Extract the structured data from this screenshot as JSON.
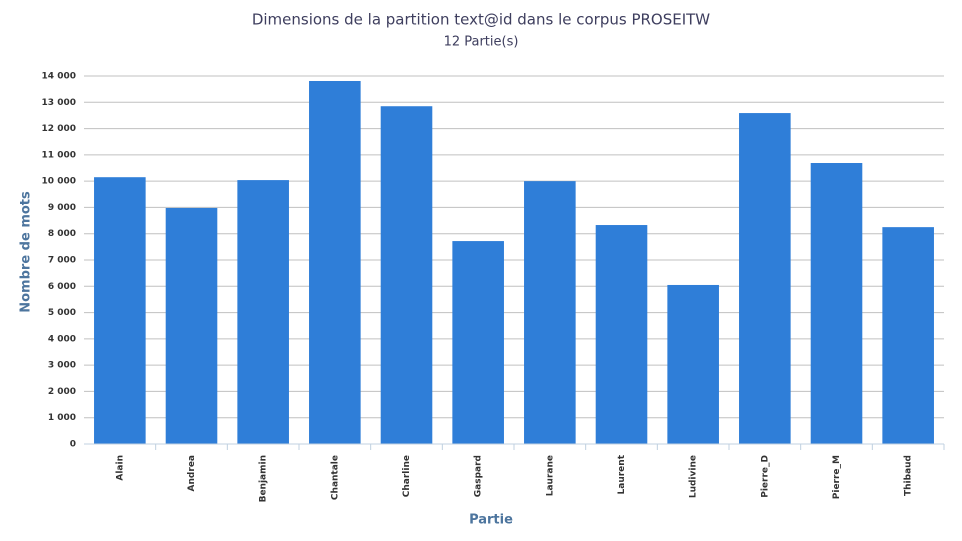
{
  "chart_data": {
    "type": "bar",
    "title": "Dimensions de la partition text@id dans le corpus PROSEITW",
    "subtitle": "12 Partie(s)",
    "x_label": "Partie",
    "y_label": "Nombre de mots",
    "categories": [
      "Alain",
      "Andrea",
      "Benjamin",
      "Chantale",
      "Charline",
      "Gaspard",
      "Laurane",
      "Laurent",
      "Ludivine",
      "Pierre_D",
      "Pierre_M",
      "Thibaud"
    ],
    "values": [
      10150,
      8980,
      10040,
      13810,
      12850,
      7720,
      10000,
      8330,
      6050,
      12590,
      10690,
      8250
    ],
    "color": "#2f7ed8",
    "ylim": [
      0,
      14000
    ],
    "yticks": [
      0,
      {
        "value": 1000,
        "label": "1 000"
      },
      {
        "value": 2000,
        "label": "2 000"
      },
      {
        "value": 3000,
        "label": "3 000"
      },
      {
        "value": 4000,
        "label": "4 000"
      },
      {
        "value": 5000,
        "label": "5 000"
      },
      {
        "value": 6000,
        "label": "6 000"
      },
      {
        "value": 7000,
        "label": "7 000"
      },
      {
        "value": 8000,
        "label": "8 000"
      },
      {
        "value": 9000,
        "label": "9 000"
      },
      {
        "value": 10000,
        "label": "10 000"
      },
      {
        "value": 11000,
        "label": "11 000"
      },
      {
        "value": 12000,
        "label": "12 000"
      },
      {
        "value": 13000,
        "label": "13 000"
      },
      {
        "value": 14000,
        "label": "14 000"
      }
    ],
    "grid": true
  }
}
